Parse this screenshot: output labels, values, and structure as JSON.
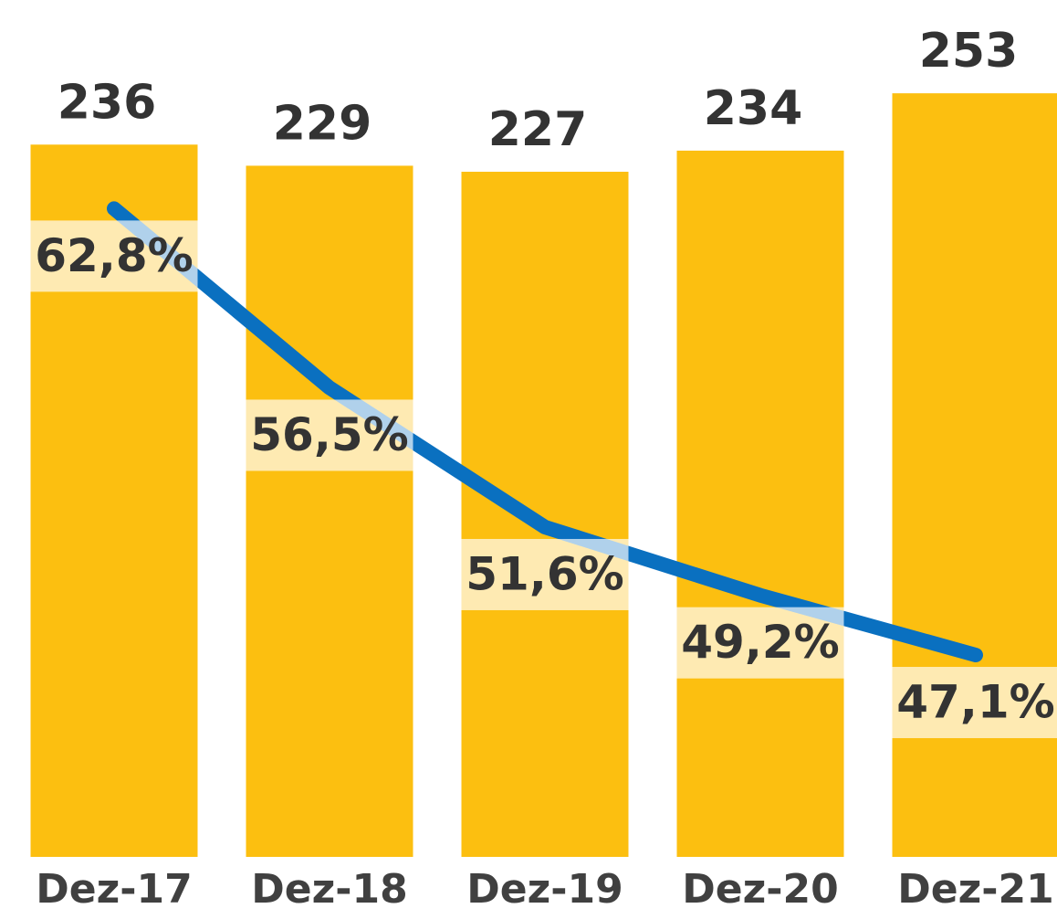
{
  "chart_data": {
    "type": "bar",
    "categories": [
      "Dez-17",
      "Dez-18",
      "Dez-19",
      "Dez-20",
      "Dez-21"
    ],
    "ylim": [
      0,
      260
    ],
    "y2lim": [
      40,
      67.6
    ],
    "series": [
      {
        "type": "bar",
        "color": "#fcbf10",
        "values": [
          236,
          229,
          227,
          234,
          253
        ]
      },
      {
        "type": "line",
        "axis": "y2",
        "color": "#0a70c0",
        "values": [
          62.8,
          56.5,
          51.6,
          49.2,
          47.1
        ],
        "value_labels": [
          "62,8%",
          "56,5%",
          "51,6%",
          "49,2%",
          "47,1%"
        ]
      }
    ]
  }
}
